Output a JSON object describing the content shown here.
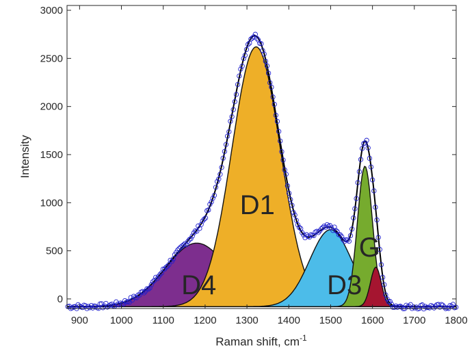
{
  "chart_data": {
    "type": "area",
    "title": "",
    "xlabel": "Raman shift, cm",
    "xlabel_superscript": "-1",
    "ylabel": "Intensity",
    "xlim": [
      870,
      1800
    ],
    "ylim": [
      -100,
      3050
    ],
    "x_ticks": [
      900,
      1000,
      1100,
      1200,
      1300,
      1400,
      1500,
      1600,
      1700,
      1800
    ],
    "y_ticks": [
      0,
      500,
      1000,
      1500,
      2000,
      2500,
      3000
    ],
    "grid": false,
    "baseline": -80,
    "peaks": [
      {
        "name": "D4",
        "center": 1180,
        "sigma": 75,
        "amplitude": 660,
        "color": "#7d2e8e",
        "label_at": [
          1185,
          50
        ]
      },
      {
        "name": "D1",
        "center": 1322,
        "sigma": 58,
        "amplitude": 2700,
        "color": "#eeaf28",
        "label_at": [
          1325,
          880
        ]
      },
      {
        "name": "D3",
        "center": 1500,
        "sigma": 50,
        "amplitude": 800,
        "color": "#4cbce9",
        "label_at": [
          1533,
          50
        ]
      },
      {
        "name": "G",
        "center": 1582,
        "sigma": 18,
        "amplitude": 1460,
        "color": "#76ab2e",
        "label_at": [
          1593,
          440
        ]
      },
      {
        "name": "",
        "center": 1608,
        "sigma": 13,
        "amplitude": 410,
        "color": "#a51530",
        "label_at": null
      }
    ],
    "fit_color": "#000000",
    "measured_marker_color": "#1f1fcc"
  }
}
